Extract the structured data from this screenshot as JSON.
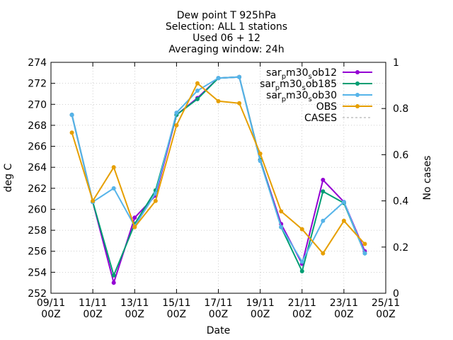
{
  "chart_data": {
    "type": "line",
    "title_lines": [
      "Dew point T 925hPa",
      "Selection: ALL      1 stations",
      "Used 06 + 12",
      "Averaging window: 24h"
    ],
    "xlabel": "Date",
    "ylabel": "deg C",
    "y2label": "No cases",
    "x_ticks": [
      [
        "09/11",
        "00Z"
      ],
      [
        "11/11",
        "00Z"
      ],
      [
        "13/11",
        "00Z"
      ],
      [
        "15/11",
        "00Z"
      ],
      [
        "17/11",
        "00Z"
      ],
      [
        "19/11",
        "00Z"
      ],
      [
        "21/11",
        "00Z"
      ],
      [
        "23/11",
        "00Z"
      ],
      [
        "25/11",
        "00Z"
      ]
    ],
    "xlim": [
      0,
      16
    ],
    "ylim": [
      252,
      274
    ],
    "y_ticks": [
      252,
      254,
      256,
      258,
      260,
      262,
      264,
      266,
      268,
      270,
      272,
      274
    ],
    "y2lim": [
      0,
      1
    ],
    "y2_ticks": [
      "0",
      "0.2",
      "0.4",
      "0.6",
      "0.8",
      "1"
    ],
    "grid": true,
    "legend_position": "top-right",
    "series": [
      {
        "name": "sar_p m30_s ob12",
        "legend_parts": [
          "sar",
          "p",
          "m30",
          "s",
          "ob12"
        ],
        "color": "#9400d3",
        "x": [
          1,
          2,
          3,
          4,
          5,
          6,
          7,
          8,
          9,
          10,
          11,
          12,
          13,
          14,
          15
        ],
        "y": [
          269.0,
          260.7,
          253.0,
          259.2,
          261.3,
          269.0,
          270.6,
          272.5,
          272.6,
          264.7,
          258.6,
          254.8,
          262.8,
          260.7,
          256.0
        ]
      },
      {
        "name": "sar_p m30_s ob185",
        "legend_parts": [
          "sar",
          "p",
          "m30",
          "s",
          "ob185"
        ],
        "color": "#009e73",
        "x": [
          1,
          2,
          3,
          4,
          5,
          6,
          7,
          8,
          9,
          10,
          11,
          12,
          13,
          14,
          15
        ],
        "y": [
          269.0,
          260.7,
          253.7,
          258.6,
          261.8,
          269.0,
          270.5,
          272.5,
          272.6,
          264.7,
          258.3,
          254.1,
          261.7,
          260.6,
          255.8
        ]
      },
      {
        "name": "sar_p m30_s ob30",
        "legend_parts": [
          "sar",
          "p",
          "m30",
          "s",
          "ob30"
        ],
        "color": "#56b4e9",
        "x": [
          1,
          2,
          3,
          4,
          5,
          6,
          7,
          8,
          9,
          10,
          11,
          12,
          13,
          14,
          15
        ],
        "y": [
          269.0,
          260.7,
          262.0,
          258.4,
          261.5,
          269.2,
          271.3,
          272.5,
          272.6,
          264.6,
          258.3,
          255.0,
          258.9,
          260.7,
          255.8
        ]
      },
      {
        "name": "OBS",
        "legend_parts": [
          "OBS"
        ],
        "color": "#e69f00",
        "x": [
          1,
          2,
          3,
          4,
          5,
          6,
          7,
          8,
          9,
          10,
          11,
          12,
          13,
          14,
          15
        ],
        "y": [
          267.3,
          260.8,
          264.0,
          258.3,
          260.8,
          268.0,
          272.0,
          270.3,
          270.1,
          265.3,
          259.8,
          258.1,
          255.8,
          258.9,
          256.7
        ]
      },
      {
        "name": "CASES",
        "legend_parts": [
          "CASES"
        ],
        "color": "#a0a0a0",
        "dashed": true,
        "x": [],
        "y": []
      }
    ]
  }
}
